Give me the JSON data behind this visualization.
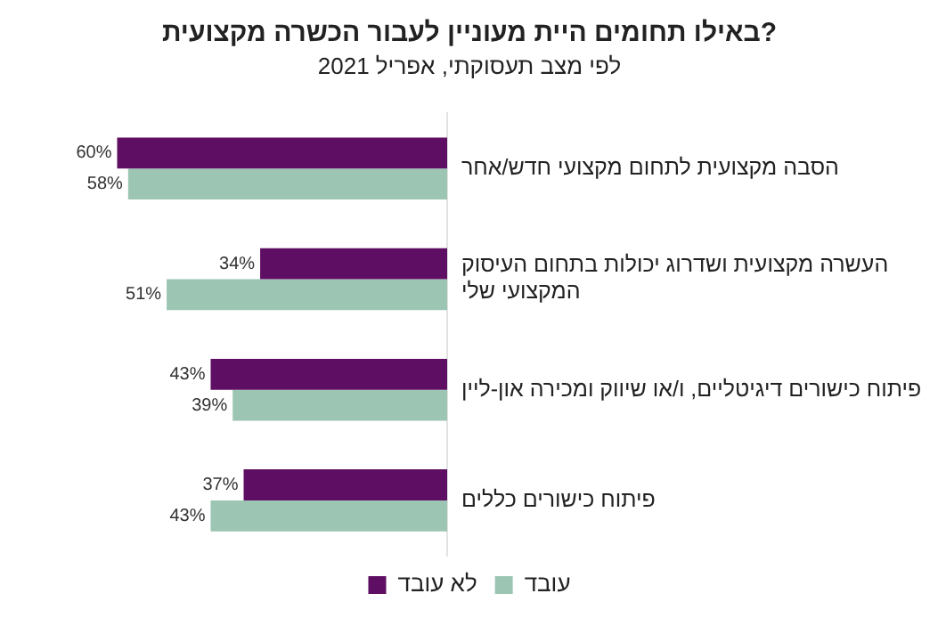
{
  "chart_data": {
    "type": "bar",
    "orientation": "horizontal",
    "title": "באילו תחומים היית מעוניין לעבור הכשרה מקצועית?",
    "subtitle": "לפי מצב תעסוקתי, אפריל 2021",
    "categories": [
      "הסבה מקצועית לתחום מקצועי חדש/אחר",
      "העשרה מקצועית ושדרוג יכולות בתחום העיסוק המקצועי שלי",
      "פיתוח כישורים דיגיטליים, ו/או שיווק ומכירה און-ליין",
      "פיתוח כישורים כללים"
    ],
    "series": [
      {
        "name": "לא עובד",
        "color": "#5f0f63",
        "values": [
          60,
          34,
          43,
          37
        ],
        "value_labels": [
          "60%",
          "34%",
          "43%",
          "37%"
        ]
      },
      {
        "name": "עובד",
        "color": "#9cc5b4",
        "values": [
          58,
          51,
          39,
          43
        ],
        "value_labels": [
          "58%",
          "51%",
          "39%",
          "43%"
        ]
      }
    ],
    "tick_labels": "y",
    "grid": false,
    "legend": "bottom"
  }
}
